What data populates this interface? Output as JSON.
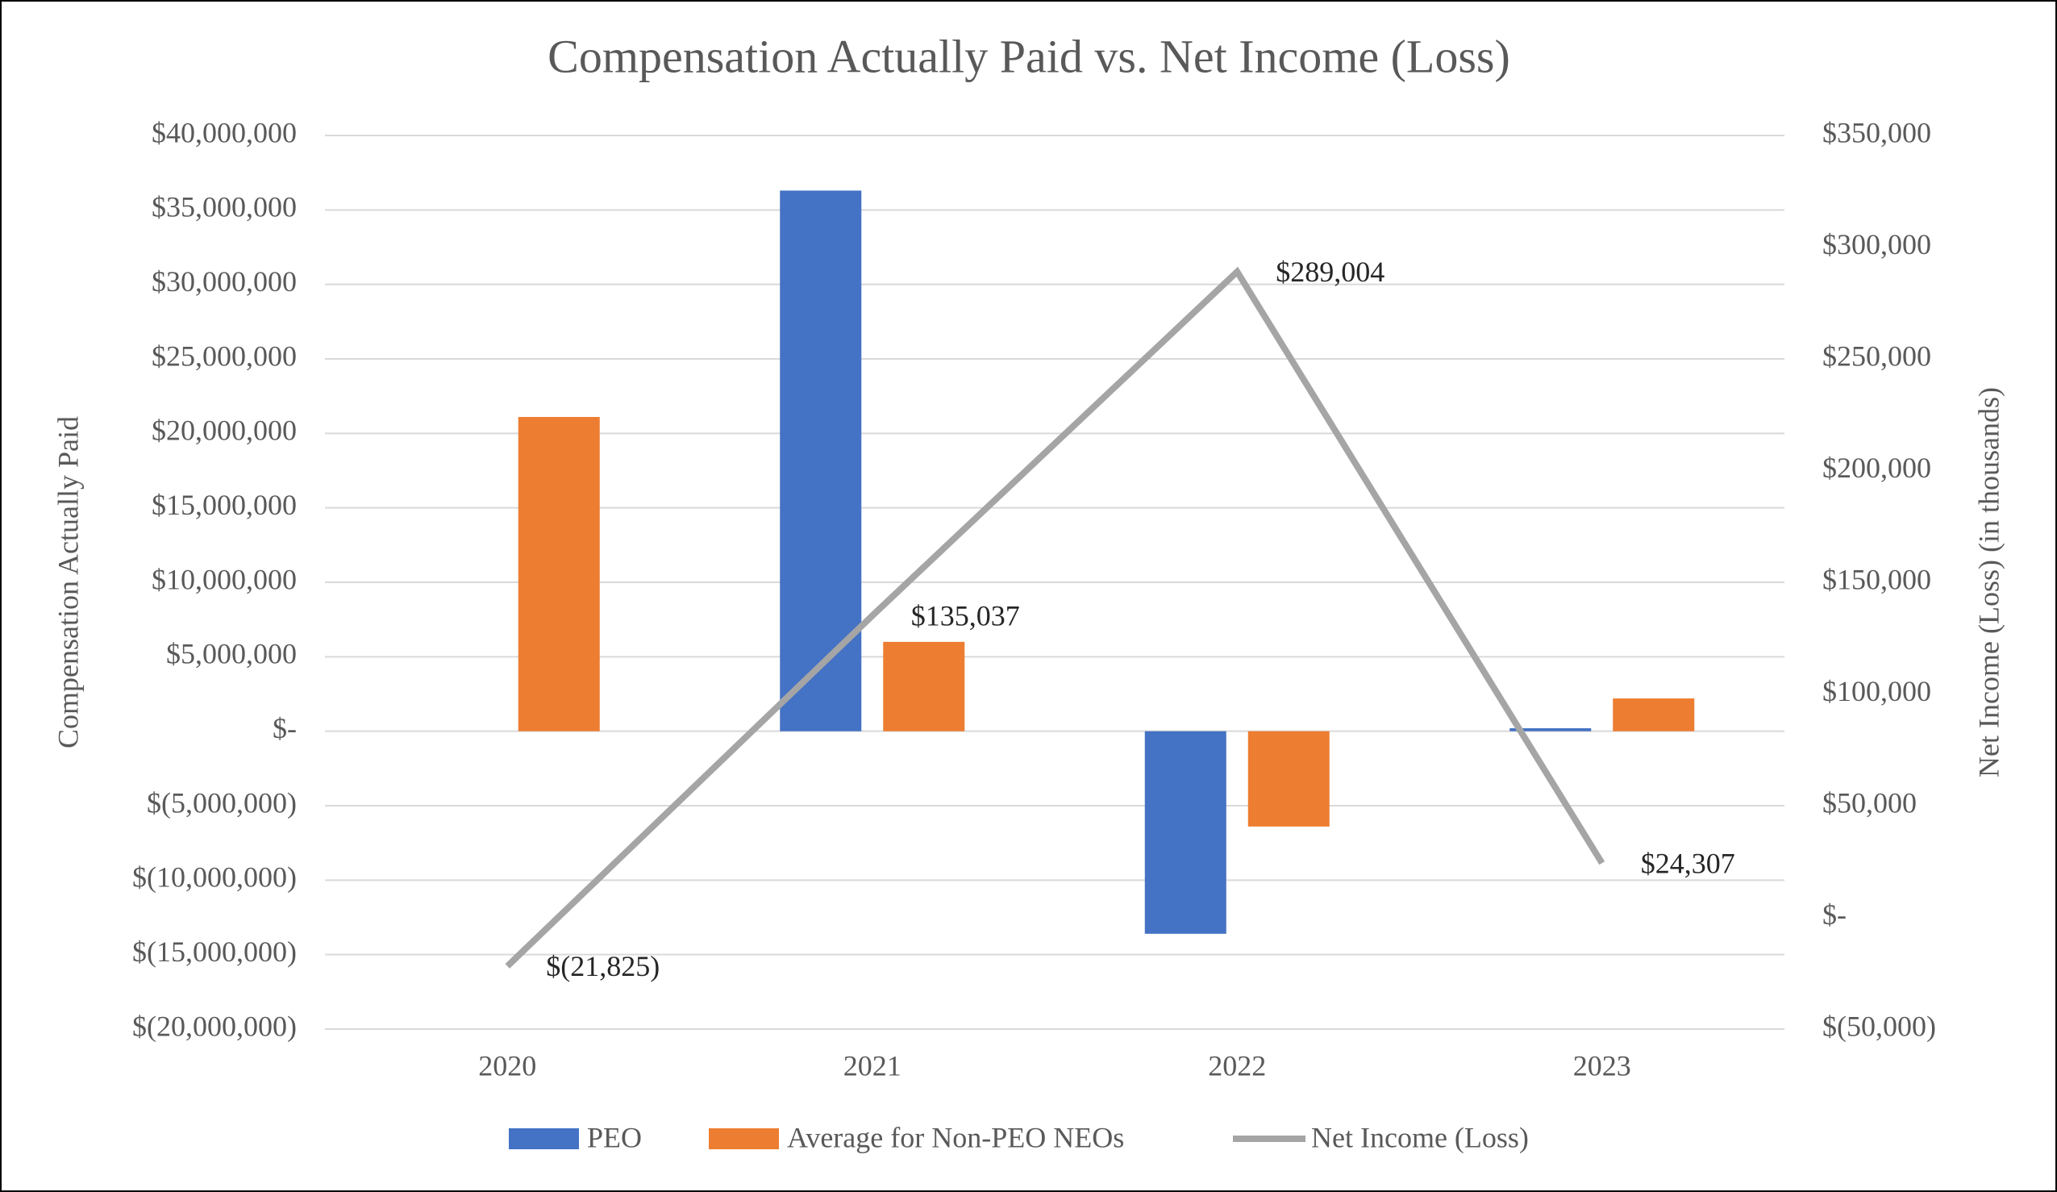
{
  "chart_data": {
    "type": "bar",
    "title": "Compensation Actually Paid vs. Net Income (Loss)",
    "y_label": "Compensation Actually Paid",
    "y2_label": "Net Income (Loss) (in thousands)",
    "categories": [
      "2020",
      "2021",
      "2022",
      "2023"
    ],
    "series": [
      {
        "name": "PEO",
        "color": "#4472c4",
        "values": [
          null,
          36300000,
          -13600000,
          200000
        ]
      },
      {
        "name": "Average for Non-PEO NEOs",
        "color": "#ed7d31",
        "values": [
          21100000,
          6000000,
          -6400000,
          2200000
        ]
      },
      {
        "name": "Net Income (Loss)",
        "color": "#a5a5a5",
        "type": "line",
        "axis": "y2",
        "values": [
          -21825,
          135037,
          289004,
          24307
        ],
        "value_labels": [
          "$(21,825)",
          "$135,037",
          "$289,004",
          "$24,307"
        ]
      }
    ],
    "ylim": [
      -20000000,
      40000000
    ],
    "yticks": [
      {
        "value": -20000000,
        "label": "$(20,000,000)"
      },
      {
        "value": -15000000,
        "label": "$(15,000,000)"
      },
      {
        "value": -10000000,
        "label": "$(10,000,000)"
      },
      {
        "value": -5000000,
        "label": "$(5,000,000)"
      },
      {
        "value": 0,
        "label": "$-"
      },
      {
        "value": 5000000,
        "label": "$5,000,000"
      },
      {
        "value": 10000000,
        "label": "$10,000,000"
      },
      {
        "value": 15000000,
        "label": "$15,000,000"
      },
      {
        "value": 20000000,
        "label": "$20,000,000"
      },
      {
        "value": 25000000,
        "label": "$25,000,000"
      },
      {
        "value": 30000000,
        "label": "$30,000,000"
      },
      {
        "value": 35000000,
        "label": "$35,000,000"
      },
      {
        "value": 40000000,
        "label": "$40,000,000"
      }
    ],
    "y2lim": [
      -50000,
      350000
    ],
    "y2ticks": [
      {
        "value": -50000,
        "label": "$(50,000)"
      },
      {
        "value": 0,
        "label": "$-"
      },
      {
        "value": 50000,
        "label": "$50,000"
      },
      {
        "value": 100000,
        "label": "$100,000"
      },
      {
        "value": 150000,
        "label": "$150,000"
      },
      {
        "value": 200000,
        "label": "$200,000"
      },
      {
        "value": 250000,
        "label": "$250,000"
      },
      {
        "value": 300000,
        "label": "$300,000"
      },
      {
        "value": 350000,
        "label": "$350,000"
      }
    ],
    "grid": true,
    "legend": "bottom"
  }
}
